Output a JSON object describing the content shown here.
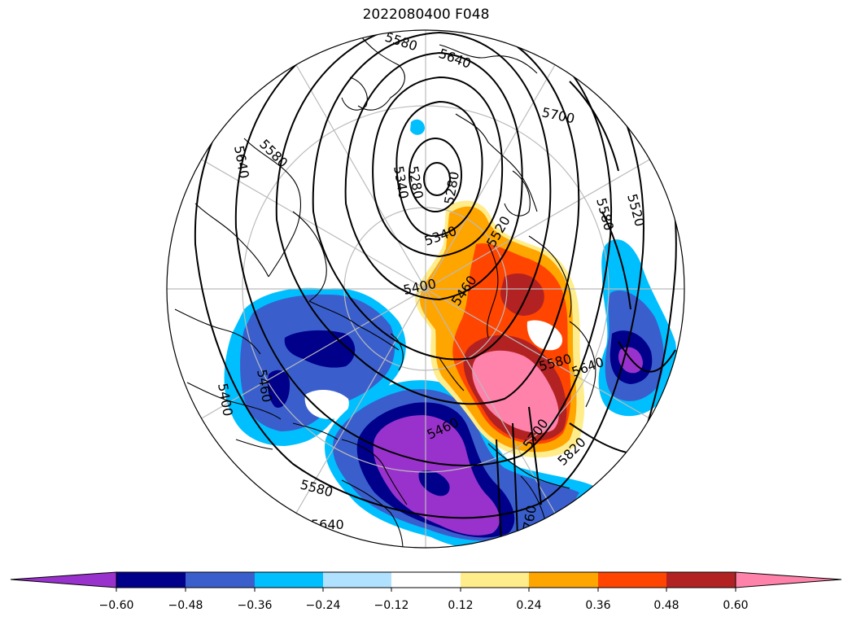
{
  "title": "2022080400 F048",
  "contour_labels": [
    "5580",
    "5640",
    "5700",
    "5580",
    "5520",
    "5640",
    "5580",
    "5280",
    "5340",
    "5280",
    "5340",
    "5520",
    "5400",
    "5460",
    "5580",
    "5640",
    "5460",
    "5400",
    "5460",
    "5580",
    "5640",
    "5700",
    "5820",
    "5760"
  ],
  "colorbar": {
    "colors": [
      "#9932CC",
      "#00008B",
      "#3A5FCD",
      "#00BFFF",
      "#B0E2FF",
      "#FFFFFF",
      "#FFEC8B",
      "#FFA500",
      "#FF4500",
      "#B22222",
      "#FF82AB"
    ],
    "tick_labels": [
      "−0.60",
      "−0.48",
      "−0.36",
      "−0.24",
      "−0.12",
      "0.12",
      "0.24",
      "0.36",
      "0.48",
      "0.60"
    ],
    "extend": "both"
  },
  "legend": {
    "items": []
  }
}
